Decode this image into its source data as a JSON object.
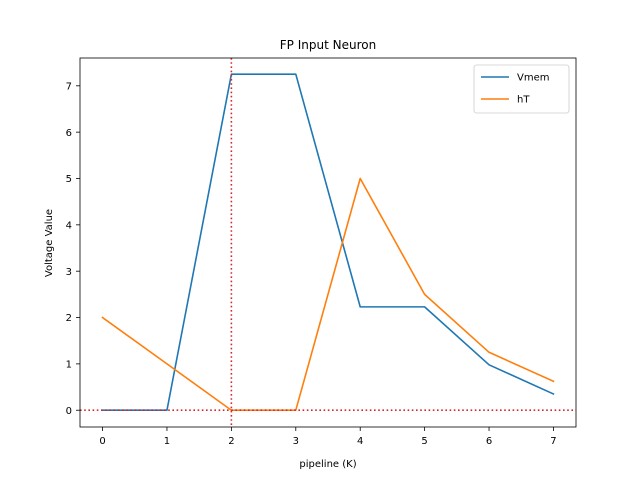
{
  "chart_data": {
    "type": "line",
    "title": "FP Input Neuron",
    "xlabel": "pipeline (K)",
    "ylabel": "Voltage Value",
    "xlim": [
      -0.35,
      7.35
    ],
    "ylim": [
      -0.362,
      7.6
    ],
    "xticks": [
      0,
      1,
      2,
      3,
      4,
      5,
      6,
      7
    ],
    "yticks": [
      0,
      1,
      2,
      3,
      4,
      5,
      6,
      7
    ],
    "grid": false,
    "legend_position": "top-right",
    "series": [
      {
        "name": "Vmem",
        "color": "#1f77b4",
        "x": [
          0,
          1,
          2,
          3,
          4,
          5,
          6,
          7
        ],
        "y": [
          0,
          0,
          7.25,
          7.25,
          2.23,
          2.23,
          0.98,
          0.35
        ]
      },
      {
        "name": "hT",
        "color": "#ff7f0e",
        "x": [
          0,
          1,
          2,
          3,
          4,
          5,
          6,
          7
        ],
        "y": [
          2.0,
          1.0,
          0,
          0,
          5.0,
          2.5,
          1.25,
          0.625
        ]
      }
    ],
    "reference_lines": [
      {
        "orientation": "vertical",
        "value": 2,
        "color": "#d62728",
        "style": "dotted"
      },
      {
        "orientation": "horizontal",
        "value": 0,
        "color": "#d62728",
        "style": "dotted"
      }
    ]
  }
}
